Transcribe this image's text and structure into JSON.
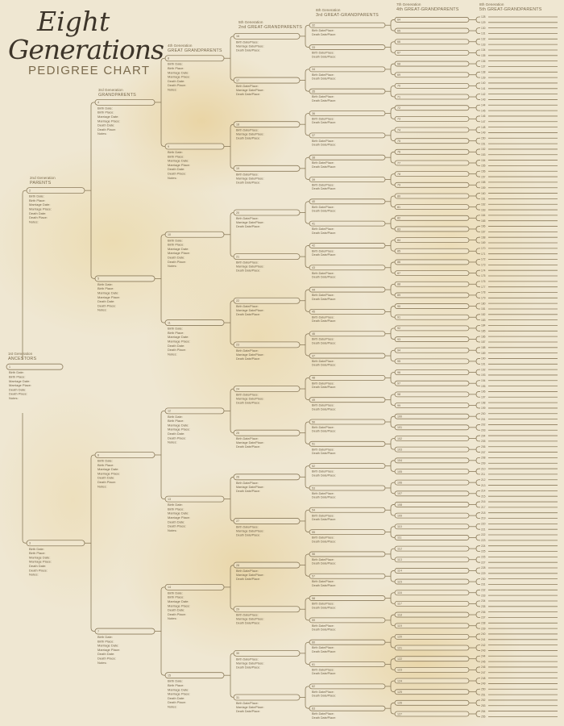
{
  "title": {
    "line1": "Eight",
    "line2": "Generations",
    "line3": "PEDIGREE CHART"
  },
  "colors": {
    "background": "#efe7d2",
    "line": "#8b7b5b",
    "text": "#6f6148"
  },
  "generations": [
    {
      "ordinal": "1st Generation",
      "label": "ANCESTORS",
      "numbers": [
        1,
        1
      ],
      "details": [
        "Birth Date:",
        "Birth Place:",
        "Marriage Date:",
        "Marriage Place:",
        "Death Date:",
        "Death Place:",
        "Notes:"
      ]
    },
    {
      "ordinal": "2nd Generation",
      "label": "PARENTS",
      "numbers": [
        2,
        3
      ],
      "details": [
        "Birth Date:",
        "Birth Place:",
        "Marriage Date:",
        "Marriage Place:",
        "Death Date:",
        "Death Place:",
        "Notes:"
      ]
    },
    {
      "ordinal": "3rd Generation",
      "label": "GRANDPARENTS",
      "numbers": [
        4,
        7
      ],
      "details": [
        "Birth Date:",
        "Birth Place:",
        "Marriage Date:",
        "Marriage Place:",
        "Death Date:",
        "Death Place:",
        "Notes:"
      ]
    },
    {
      "ordinal": "4th Generation",
      "label": "GREAT GRANDPARENTS",
      "numbers": [
        8,
        15
      ],
      "details": [
        "Birth Date:",
        "Birth Place:",
        "Marriage Date:",
        "Marriage Place:",
        "Death Date:",
        "Death Place:",
        "Notes:"
      ]
    },
    {
      "ordinal": "5th Generation",
      "label": "2nd GREAT-GRANDPARENTS",
      "numbers": [
        16,
        31
      ],
      "details": [
        "Birth Date/Place:",
        "Marriage Date/Place:",
        "Death Date/Place:"
      ]
    },
    {
      "ordinal": "6th Generation",
      "label": "3rd GREAT-GRANDPARENTS",
      "numbers": [
        32,
        63
      ],
      "details": [
        "Birth Date/Place:",
        "Death Date/Place:"
      ]
    },
    {
      "ordinal": "7th Generation",
      "label": "4th GREAT-GRANDPARENTS",
      "numbers": [
        64,
        127
      ],
      "details": []
    },
    {
      "ordinal": "8th Generation",
      "label": "5th GREAT-GRANDPARENTS",
      "numbers": [
        128,
        255
      ],
      "details": []
    }
  ]
}
